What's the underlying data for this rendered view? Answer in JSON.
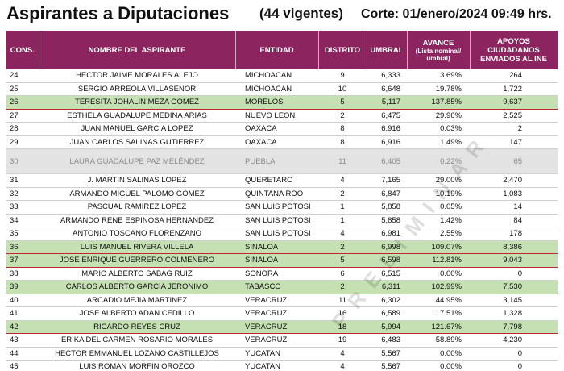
{
  "header": {
    "title": "Aspirantes a Diputaciones",
    "subtitle": "(44 vigentes)",
    "cutoff": "Corte: 01/enero/2024 09:49 hrs."
  },
  "watermark": "PRELIMINAR",
  "table": {
    "columns": [
      {
        "label": "CONS."
      },
      {
        "label": "NOMBRE DEL ASPIRANTE"
      },
      {
        "label": "ENTIDAD"
      },
      {
        "label": "DISTRITO"
      },
      {
        "label": "UMBRAL"
      },
      {
        "label": "AVANCE",
        "note": "(Lista nominal/ umbral)"
      },
      {
        "label": "APOYOS CIUDADANOS ENVIADOS AL INE"
      }
    ],
    "rows": [
      [
        24,
        "HECTOR JAIME MORALES ALEJO",
        "MICHOACAN",
        9,
        "6,333",
        "3.69%",
        "264"
      ],
      [
        25,
        "SERGIO ARREOLA VILLASEÑOR",
        "MICHOACAN",
        10,
        "6,648",
        "19.78%",
        "1,722"
      ],
      [
        26,
        "TERESITA JOHALIN MEZA GOMEZ",
        "MORELOS",
        5,
        "5,117",
        "137.85%",
        "9,637"
      ],
      [
        27,
        "ESTHELA GUADALUPE MEDINA ARIAS",
        "NUEVO LEON",
        2,
        "6,475",
        "29.96%",
        "2,525"
      ],
      [
        28,
        "JUAN MANUEL GARCIA LOPEZ",
        "OAXACA",
        8,
        "6,916",
        "0.03%",
        "2"
      ],
      [
        29,
        "JUAN CARLOS SALINAS GUTIERREZ",
        "OAXACA",
        8,
        "6,916",
        "1.49%",
        "147"
      ],
      [
        30,
        "LAURA GUADALUPE PAZ MELÉNDEZ",
        "PUEBLA",
        11,
        "6,405",
        "0.22%",
        "65"
      ],
      [
        31,
        "J. MARTIN SALINAS LOPEZ",
        "QUERETARO",
        4,
        "7,165",
        "29.00%",
        "2,470"
      ],
      [
        32,
        "ARMANDO MIGUEL PALOMO GÓMEZ",
        "QUINTANA ROO",
        2,
        "6,847",
        "10.19%",
        "1,083"
      ],
      [
        33,
        "PASCUAL RAMIREZ LOPEZ",
        "SAN LUIS POTOSI",
        1,
        "5,858",
        "0.05%",
        "14"
      ],
      [
        34,
        "ARMANDO RENE ESPINOSA HERNANDEZ",
        "SAN LUIS POTOSI",
        1,
        "5,858",
        "1.42%",
        "84"
      ],
      [
        35,
        "ANTONIO TOSCANO FLORENZANO",
        "SAN LUIS POTOSI",
        4,
        "6,981",
        "2.55%",
        "178"
      ],
      [
        36,
        "LUIS MANUEL RIVERA VILLELA",
        "SINALOA",
        2,
        "6,998",
        "109.07%",
        "8,386"
      ],
      [
        37,
        "JOSÉ ENRIQUE GUERRERO COLMENERO",
        "SINALOA",
        5,
        "6,598",
        "112.81%",
        "9,043"
      ],
      [
        38,
        "MARIO ALBERTO SABAG RUIZ",
        "SONORA",
        6,
        "6,515",
        "0.00%",
        "0"
      ],
      [
        39,
        "CARLOS ALBERTO GARCIA JERONIMO",
        "TABASCO",
        2,
        "6,311",
        "102.99%",
        "7,530"
      ],
      [
        40,
        "ARCADIO MEJIA MARTINEZ",
        "VERACRUZ",
        11,
        "6,302",
        "44.95%",
        "3,145"
      ],
      [
        41,
        "JOSE ALBERTO ADAN CEDILLO",
        "VERACRUZ",
        16,
        "6,589",
        "17.51%",
        "1,328"
      ],
      [
        42,
        "RICARDO REYES CRUZ",
        "VERACRUZ",
        18,
        "5,994",
        "121.67%",
        "7,798"
      ],
      [
        43,
        "ERIKA DEL CARMEN ROSARIO MORALES",
        "VERACRUZ",
        19,
        "6,483",
        "58.89%",
        "4,230"
      ],
      [
        44,
        "HECTOR EMMANUEL LOZANO CASTILLEJOS",
        "YUCATAN",
        4,
        "5,567",
        "0.00%",
        "0"
      ],
      [
        45,
        "LUIS ROMAN MORFIN OROZCO",
        "YUCATAN",
        4,
        "5,567",
        "0.00%",
        "0"
      ]
    ]
  }
}
